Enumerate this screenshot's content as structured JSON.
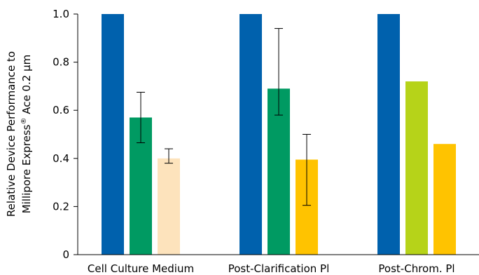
{
  "chart_data": {
    "type": "bar",
    "categories": [
      "Cell Culture Medium",
      "Post-Clarification Pl",
      "Post-Chrom. Pl"
    ],
    "ylabel_line1": "Relative Device Performance to",
    "ylabel_line2_pre": "Millipore Express",
    "ylabel_line2_sup": "®",
    "ylabel_line2_post": " Ace 0.2 µm",
    "ylim": [
      0,
      1.0
    ],
    "yticks": [
      "0",
      "0.2",
      "0.4",
      "0.6",
      "0.8",
      "1.0"
    ],
    "ytick_values": [
      0,
      0.2,
      0.4,
      0.6,
      0.8,
      1.0
    ],
    "grid": false,
    "legend": "none",
    "groups": [
      {
        "category": "Cell Culture Medium",
        "bars": [
          {
            "value": 1.0,
            "color": "#0061ad",
            "err": null
          },
          {
            "value": 0.57,
            "color": "#009a62",
            "err": [
              0.465,
              0.675
            ]
          },
          {
            "value": 0.4,
            "color": "#fde3bc",
            "err": [
              0.38,
              0.44
            ]
          }
        ]
      },
      {
        "category": "Post-Clarification Pl",
        "bars": [
          {
            "value": 1.0,
            "color": "#0061ad",
            "err": null
          },
          {
            "value": 0.69,
            "color": "#009a62",
            "err": [
              0.58,
              0.94
            ]
          },
          {
            "value": 0.395,
            "color": "#ffc300",
            "err": [
              0.205,
              0.5
            ]
          }
        ]
      },
      {
        "category": "Post-Chrom. Pl",
        "bars": [
          {
            "value": 1.0,
            "color": "#0061ad",
            "err": null
          },
          {
            "value": 0.72,
            "color": "#b6d319",
            "err": null
          },
          {
            "value": 0.46,
            "color": "#ffc300",
            "err": null
          }
        ]
      }
    ]
  }
}
